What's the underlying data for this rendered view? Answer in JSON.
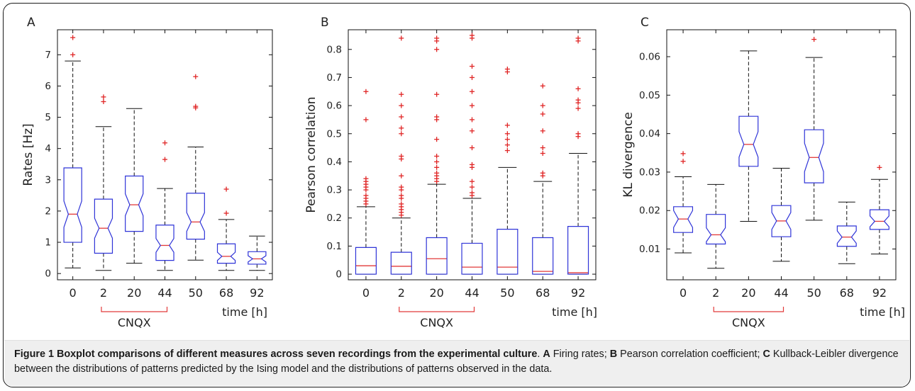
{
  "chart_data": [
    {
      "type": "boxplot",
      "panel_label": "A",
      "ylabel": "Rates [Hz]",
      "categories": [
        "0",
        "2",
        "20",
        "44",
        "50",
        "68",
        "92"
      ],
      "ylim": [
        -0.2,
        7.8
      ],
      "yticks": [
        0,
        1,
        2,
        3,
        4,
        5,
        6,
        7
      ],
      "ytick_labels": [
        "0",
        "1",
        "2",
        "3",
        "4",
        "5",
        "6",
        "7"
      ],
      "boxes": [
        {
          "whislo": 0.18,
          "q1": 1.0,
          "med": 1.9,
          "q3": 3.38,
          "whishi": 6.8,
          "notch": 0.42,
          "fliers": [
            7.0,
            7.55
          ]
        },
        {
          "whislo": 0.1,
          "q1": 0.65,
          "med": 1.45,
          "q3": 2.38,
          "whishi": 4.7,
          "notch": 0.32,
          "fliers": [
            5.5,
            5.65
          ]
        },
        {
          "whislo": 0.33,
          "q1": 1.35,
          "med": 2.2,
          "q3": 3.12,
          "whishi": 5.28,
          "notch": 0.35,
          "fliers": []
        },
        {
          "whislo": 0.1,
          "q1": 0.42,
          "med": 0.9,
          "q3": 1.55,
          "whishi": 2.72,
          "notch": 0.22,
          "fliers": [
            3.65,
            4.18
          ]
        },
        {
          "whislo": 0.43,
          "q1": 1.1,
          "med": 1.65,
          "q3": 2.57,
          "whishi": 4.05,
          "notch": 0.3,
          "fliers": [
            5.3,
            5.35,
            6.3
          ]
        },
        {
          "whislo": 0.1,
          "q1": 0.33,
          "med": 0.55,
          "q3": 0.95,
          "whishi": 1.73,
          "notch": 0.13,
          "fliers": [
            1.93,
            2.7
          ]
        },
        {
          "whislo": 0.1,
          "q1": 0.3,
          "med": 0.47,
          "q3": 0.7,
          "whishi": 1.2,
          "notch": 0.1,
          "fliers": []
        }
      ],
      "xlabel": "time [h]",
      "group_label": "CNQX",
      "group_span": [
        "2",
        "44"
      ]
    },
    {
      "type": "boxplot",
      "panel_label": "B",
      "ylabel": "Pearson correlation",
      "categories": [
        "0",
        "2",
        "20",
        "44",
        "50",
        "68",
        "92"
      ],
      "ylim": [
        -0.02,
        0.87
      ],
      "yticks": [
        0,
        0.1,
        0.2,
        0.3,
        0.4,
        0.5,
        0.6,
        0.7,
        0.8
      ],
      "ytick_labels": [
        "0",
        "0.1",
        "0.2",
        "0.3",
        "0.4",
        "0.5",
        "0.6",
        "0.7",
        "0.8"
      ],
      "boxes": [
        {
          "whislo": 0.0,
          "q1": 0.0,
          "med": 0.03,
          "q3": 0.095,
          "whishi": 0.24,
          "notch": 0.0,
          "fliers": [
            0.25,
            0.26,
            0.27,
            0.28,
            0.3,
            0.31,
            0.32,
            0.33,
            0.34,
            0.55,
            0.65
          ]
        },
        {
          "whislo": 0.0,
          "q1": 0.0,
          "med": 0.028,
          "q3": 0.078,
          "whishi": 0.2,
          "notch": 0.0,
          "fliers": [
            0.21,
            0.22,
            0.23,
            0.24,
            0.25,
            0.27,
            0.28,
            0.3,
            0.31,
            0.35,
            0.41,
            0.42,
            0.5,
            0.52,
            0.56,
            0.6,
            0.64,
            0.84
          ]
        },
        {
          "whislo": 0.0,
          "q1": 0.0,
          "med": 0.055,
          "q3": 0.13,
          "whishi": 0.32,
          "notch": 0.0,
          "fliers": [
            0.33,
            0.34,
            0.35,
            0.36,
            0.38,
            0.4,
            0.42,
            0.48,
            0.55,
            0.56,
            0.64,
            0.8,
            0.83,
            0.84
          ]
        },
        {
          "whislo": 0.0,
          "q1": 0.0,
          "med": 0.025,
          "q3": 0.11,
          "whishi": 0.27,
          "notch": 0.0,
          "fliers": [
            0.28,
            0.29,
            0.31,
            0.33,
            0.38,
            0.39,
            0.45,
            0.51,
            0.55,
            0.6,
            0.65,
            0.7,
            0.74,
            0.84,
            0.85
          ]
        },
        {
          "whislo": 0.0,
          "q1": 0.0,
          "med": 0.025,
          "q3": 0.16,
          "whishi": 0.38,
          "notch": 0.0,
          "fliers": [
            0.44,
            0.46,
            0.48,
            0.5,
            0.53,
            0.72,
            0.73
          ]
        },
        {
          "whislo": 0.0,
          "q1": 0.0,
          "med": 0.01,
          "q3": 0.13,
          "whishi": 0.33,
          "notch": 0.0,
          "fliers": [
            0.35,
            0.36,
            0.43,
            0.45,
            0.51,
            0.57,
            0.6,
            0.67
          ]
        },
        {
          "whislo": 0.0,
          "q1": 0.0,
          "med": 0.005,
          "q3": 0.17,
          "whishi": 0.43,
          "notch": 0.0,
          "fliers": [
            0.49,
            0.5,
            0.59,
            0.61,
            0.62,
            0.66,
            0.83,
            0.84
          ]
        }
      ],
      "xlabel": "time [h]",
      "group_label": "CNQX",
      "group_span": [
        "2",
        "44"
      ]
    },
    {
      "type": "boxplot",
      "panel_label": "C",
      "ylabel": "KL divergence",
      "categories": [
        "0",
        "2",
        "20",
        "44",
        "50",
        "68",
        "92"
      ],
      "ylim": [
        0.002,
        0.067
      ],
      "yticks": [
        0.01,
        0.02,
        0.03,
        0.04,
        0.05,
        0.06
      ],
      "ytick_labels": [
        "0.01",
        "0.02",
        "0.03",
        "0.04",
        "0.05",
        "0.06"
      ],
      "boxes": [
        {
          "whislo": 0.009,
          "q1": 0.0143,
          "med": 0.0178,
          "q3": 0.021,
          "whishi": 0.0288,
          "notch": 0.0022,
          "fliers": [
            0.0328,
            0.0348
          ]
        },
        {
          "whislo": 0.005,
          "q1": 0.0113,
          "med": 0.0137,
          "q3": 0.019,
          "whishi": 0.0268,
          "notch": 0.0018,
          "fliers": []
        },
        {
          "whislo": 0.0172,
          "q1": 0.0315,
          "med": 0.0372,
          "q3": 0.0445,
          "whishi": 0.0615,
          "notch": 0.0033,
          "fliers": []
        },
        {
          "whislo": 0.0068,
          "q1": 0.0132,
          "med": 0.0173,
          "q3": 0.0213,
          "whishi": 0.031,
          "notch": 0.0022,
          "fliers": []
        },
        {
          "whislo": 0.0175,
          "q1": 0.0272,
          "med": 0.0338,
          "q3": 0.041,
          "whishi": 0.0598,
          "notch": 0.0037,
          "fliers": [
            0.0645
          ]
        },
        {
          "whislo": 0.0062,
          "q1": 0.0107,
          "med": 0.0131,
          "q3": 0.016,
          "whishi": 0.0222,
          "notch": 0.0016,
          "fliers": []
        },
        {
          "whislo": 0.0087,
          "q1": 0.0151,
          "med": 0.0172,
          "q3": 0.0202,
          "whishi": 0.0281,
          "notch": 0.0014,
          "fliers": [
            0.0312
          ]
        }
      ],
      "xlabel": "time [h]",
      "group_label": "CNQX",
      "group_span": [
        "2",
        "44"
      ]
    }
  ],
  "colors": {
    "box": "#2f34d8",
    "median": "#e23a3a",
    "whisker": "#111111",
    "flier": "#e02626"
  },
  "caption": {
    "figure_label": "Figure 1",
    "title": "Boxplot comparisons of different measures across seven recordings from the experimental culture",
    "sep1": ". ",
    "A_label": "A",
    "A_text": " Firing rates; ",
    "B_label": "B",
    "B_text": " Pearson correlation coefficient; ",
    "C_label": "C",
    "C_text": " Kullback-Leibler divergence between the distributions of patterns predicted by the Ising model and the distributions of patterns observed in the data."
  }
}
